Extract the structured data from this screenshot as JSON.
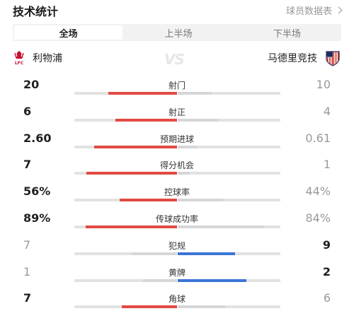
{
  "header": {
    "title": "技术统计",
    "more_label": "球员数据表"
  },
  "tabs": [
    {
      "label": "全场",
      "active": true
    },
    {
      "label": "上半场",
      "active": false
    },
    {
      "label": "下半场",
      "active": false
    }
  ],
  "teams": {
    "home": {
      "name": "利物浦",
      "logo_icon": "liverpool-crest-icon",
      "logo_text": "LFC"
    },
    "vs": "VS",
    "away": {
      "name": "马德里竞技",
      "logo_icon": "atletico-crest-icon"
    }
  },
  "colors": {
    "home_bar": "#e14a43",
    "away_bar": "#3a74d6",
    "track": "#e2e2e2",
    "muted": "#999999"
  },
  "stats": [
    {
      "label": "射门",
      "home": "20",
      "away": "10",
      "home_pct": 0.67,
      "away_pct": 0.33,
      "leader": "home"
    },
    {
      "label": "射正",
      "home": "6",
      "away": "4",
      "home_pct": 0.6,
      "away_pct": 0.4,
      "leader": "home"
    },
    {
      "label": "预期进球",
      "home": "2.60",
      "away": "0.61",
      "home_pct": 0.81,
      "away_pct": 0.19,
      "leader": "home"
    },
    {
      "label": "得分机会",
      "home": "7",
      "away": "1",
      "home_pct": 0.88,
      "away_pct": 0.12,
      "leader": "home"
    },
    {
      "label": "控球率",
      "home": "56%",
      "away": "44%",
      "home_pct": 0.56,
      "away_pct": 0.44,
      "leader": "home"
    },
    {
      "label": "传球成功率",
      "home": "89%",
      "away": "84%",
      "home_pct": 0.89,
      "away_pct": 0.84,
      "leader": "home"
    },
    {
      "label": "犯规",
      "home": "7",
      "away": "9",
      "home_pct": 0.44,
      "away_pct": 0.56,
      "leader": "away"
    },
    {
      "label": "黄牌",
      "home": "1",
      "away": "2",
      "home_pct": 0.33,
      "away_pct": 0.67,
      "leader": "away"
    },
    {
      "label": "角球",
      "home": "7",
      "away": "6",
      "home_pct": 0.54,
      "away_pct": 0.46,
      "leader": "home"
    }
  ]
}
